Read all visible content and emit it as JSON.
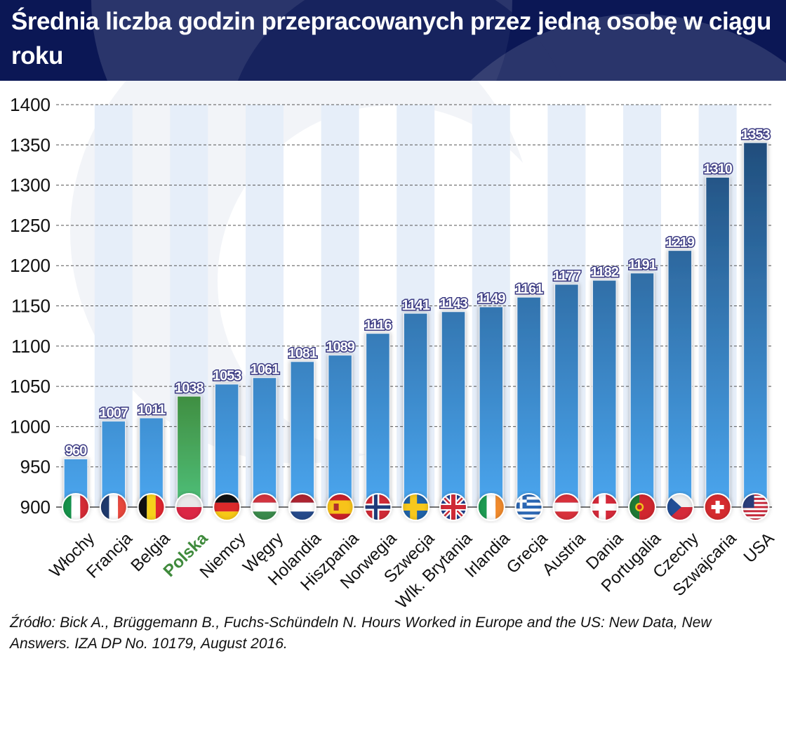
{
  "title": "Średnia liczba godzin przepracowanych przez jedną osobę w ciągu roku",
  "source": "Źródło:  Bick A., Brüggemann B., Fuchs-Schündeln N. Hours Worked in Europe and the US: New Data, New Answers. IZA DP No. 10179, August 2016.",
  "chart_data": {
    "type": "bar",
    "title": "Średnia liczba godzin przepracowanych przez jedną osobę w ciągu roku",
    "xlabel": "",
    "ylabel": "",
    "ylim": [
      900,
      1400
    ],
    "yticks": [
      900,
      950,
      1000,
      1050,
      1100,
      1150,
      1200,
      1250,
      1300,
      1350,
      1400
    ],
    "grid": true,
    "categories": [
      "Włochy",
      "Francja",
      "Belgia",
      "Polska",
      "Niemcy",
      "Węgry",
      "Holandia",
      "Hiszpania",
      "Norwegia",
      "Szwecja",
      "Wlk. Brytania",
      "Irlandia",
      "Grecja",
      "Austria",
      "Dania",
      "Portugalia",
      "Czechy",
      "Szwajcaria",
      "USA"
    ],
    "values": [
      960,
      1007,
      1011,
      1038,
      1053,
      1061,
      1081,
      1089,
      1116,
      1141,
      1143,
      1149,
      1161,
      1177,
      1182,
      1191,
      1219,
      1310,
      1353
    ],
    "flags": [
      "flag-italy-icon",
      "flag-france-icon",
      "flag-belgium-icon",
      "flag-poland-icon",
      "flag-germany-icon",
      "flag-hungary-icon",
      "flag-netherlands-icon",
      "flag-spain-icon",
      "flag-norway-icon",
      "flag-sweden-icon",
      "flag-uk-icon",
      "flag-ireland-icon",
      "flag-greece-icon",
      "flag-austria-icon",
      "flag-denmark-icon",
      "flag-portugal-icon",
      "flag-czech-icon",
      "flag-switzerland-icon",
      "flag-usa-icon"
    ],
    "highlight": "Polska",
    "colors": {
      "bar_top": "#1c4470",
      "bar_bottom": "#4aa6ef",
      "highlight_top": "#3f8a3c",
      "highlight_bottom": "#4fc07a",
      "highlight_label": "#3f8a3c",
      "header": "#0b1755",
      "stripe": "#e6eef9"
    }
  }
}
